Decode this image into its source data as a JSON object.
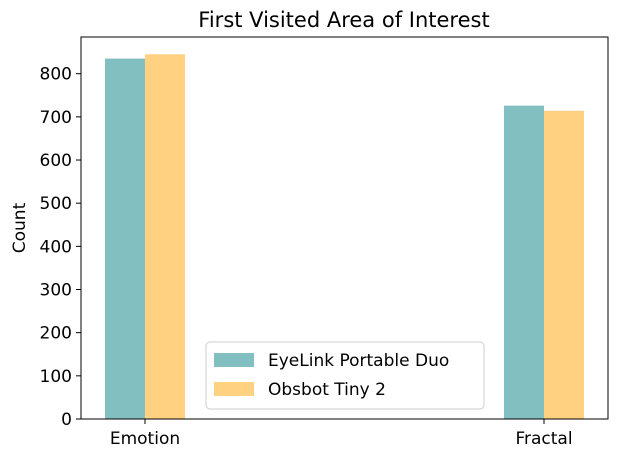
{
  "chart_data": {
    "type": "bar",
    "title": "First Visited Area of Interest",
    "xlabel": "",
    "ylabel": "Count",
    "categories": [
      "Emotion",
      "Fractal"
    ],
    "series": [
      {
        "name": "EyeLink Portable Duo",
        "values": [
          835,
          726
        ],
        "color": "#82BFC0"
      },
      {
        "name": "Obsbot Tiny 2",
        "values": [
          845,
          714
        ],
        "color": "#FFD180"
      }
    ],
    "ylim": [
      0,
      885
    ],
    "yticks": [
      0,
      100,
      200,
      300,
      400,
      500,
      600,
      700,
      800
    ],
    "legend_position": "bottom-center",
    "grid": false
  }
}
